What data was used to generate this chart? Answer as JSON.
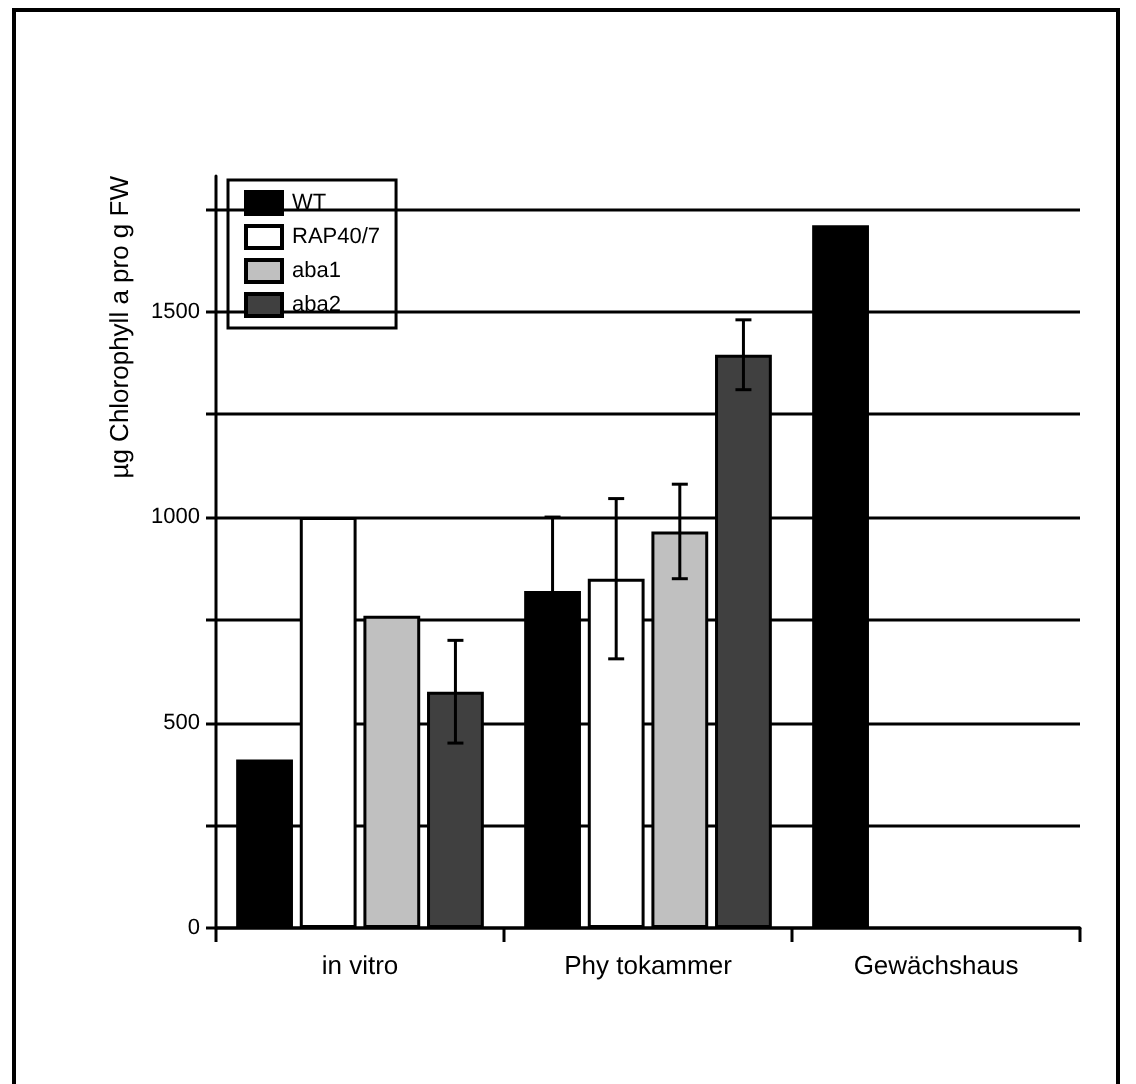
{
  "chart_data": {
    "type": "bar",
    "ylabel": "µg Chlorophyll a pro g FW",
    "categories": [
      "in vitro",
      "Phy tokammer",
      "Gewächshaus"
    ],
    "series": [
      {
        "name": "WT",
        "color": "#000000",
        "values": [
          410,
          820,
          1710
        ],
        "errors": [
          null,
          180,
          null
        ]
      },
      {
        "name": "RAP40/7",
        "color": "#ffffff",
        "values": [
          1000,
          850,
          null
        ],
        "errors": [
          null,
          195,
          null
        ]
      },
      {
        "name": "aba1",
        "color": "#c0c0c0",
        "values": [
          760,
          965,
          null
        ],
        "errors": [
          null,
          115,
          null
        ]
      },
      {
        "name": "aba2",
        "color": "#404040",
        "values": [
          575,
          1395,
          null
        ],
        "errors": [
          125,
          85,
          null
        ]
      }
    ],
    "ylim": [
      0,
      1830
    ],
    "yticks": [
      0,
      {
        "value": 250,
        "label": null
      },
      500,
      {
        "value": 750,
        "label": null
      },
      1000,
      {
        "value": 1250,
        "label": null
      },
      1500,
      {
        "value": 1750,
        "label": null
      }
    ],
    "grid": "y",
    "legend": "top left"
  }
}
